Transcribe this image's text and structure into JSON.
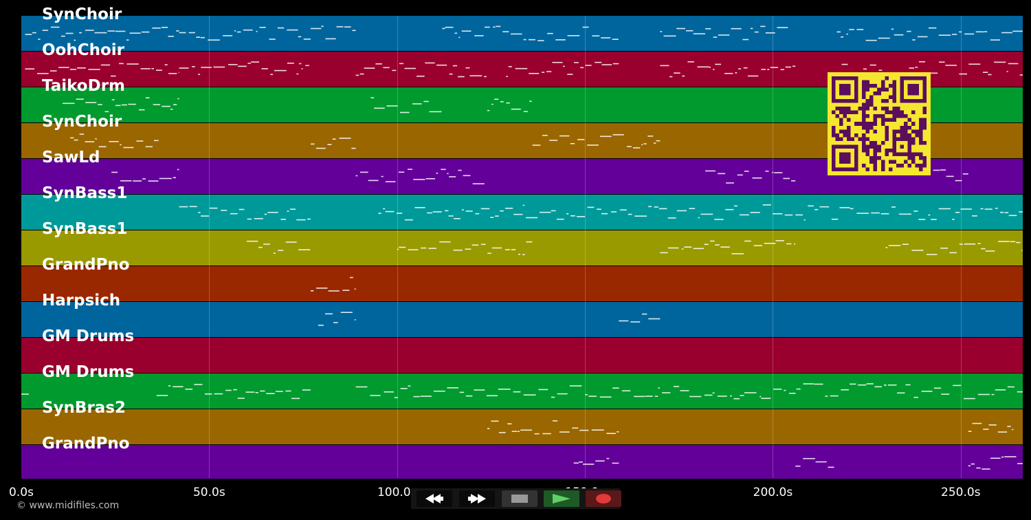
{
  "tracks": [
    {
      "name": "SynChoir",
      "color": "#00659d"
    },
    {
      "name": "OohChoir",
      "color": "#99002e"
    },
    {
      "name": "TaikoDrm",
      "color": "#009a2e"
    },
    {
      "name": "SynChoir",
      "color": "#9a6600"
    },
    {
      "name": "SawLd",
      "color": "#630099"
    },
    {
      "name": "SynBass1",
      "color": "#009999"
    },
    {
      "name": "SynBass1",
      "color": "#999a00"
    },
    {
      "name": "GrandPno",
      "color": "#992800"
    },
    {
      "name": "Harpsich",
      "color": "#00659d"
    },
    {
      "name": "GM Drums",
      "color": "#99002e"
    },
    {
      "name": "GM Drums",
      "color": "#009a2e"
    },
    {
      "name": "SynBras2",
      "color": "#9a6600"
    },
    {
      "name": "GrandPno",
      "color": "#630099"
    }
  ],
  "timeline": {
    "ticks": [
      "0.0s",
      "50.0s",
      "100.0s",
      "150.0s",
      "200.0s",
      "250.0s"
    ],
    "tick_values": [
      0,
      50,
      100,
      150,
      200,
      250
    ],
    "max_seconds": 266.5
  },
  "credit": "© www.midifiles.com",
  "transport": {
    "rewind_icon": "rewind-icon",
    "forward_icon": "fast-forward-icon",
    "stop_icon": "stop-icon",
    "play_icon": "play-icon",
    "record_icon": "record-icon",
    "play_color": "#5fd068",
    "record_color": "#e03a3a"
  },
  "qr_colors": {
    "fg": "#5a0e5c",
    "bg": "#f5e630"
  }
}
